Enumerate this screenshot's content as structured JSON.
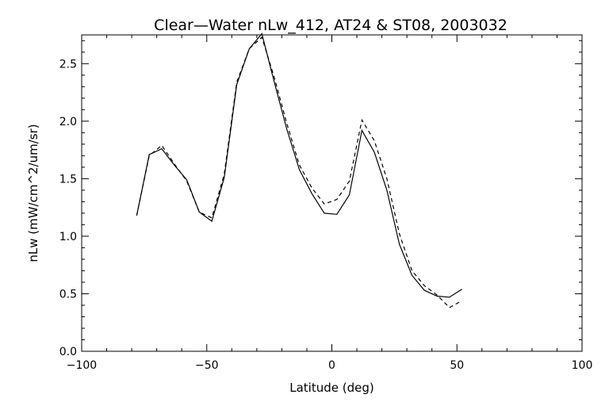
{
  "chart_data": {
    "type": "line",
    "title": "Clear—Water nLw_412, AT24 & ST08, 2003032",
    "xlabel": "Latitude (deg)",
    "ylabel": "nLw (mW/cm^2/um/sr)",
    "xlim": [
      -100,
      100
    ],
    "ylim": [
      0.0,
      2.75
    ],
    "xticks": [
      -100,
      -50,
      0,
      50,
      100
    ],
    "xtick_labels": [
      "−100",
      "−50",
      "0",
      "50",
      "100"
    ],
    "yticks": [
      0.0,
      0.5,
      1.0,
      1.5,
      2.0,
      2.5
    ],
    "ytick_labels": [
      "0.0",
      "0.5",
      "1.0",
      "1.5",
      "2.0",
      "2.5"
    ],
    "grid": false,
    "legend": "none",
    "series": [
      {
        "style": "solid",
        "color": "#000000",
        "x": [
          -78,
          -73,
          -68,
          -63,
          -58,
          -53,
          -48,
          -43,
          -38,
          -33,
          -28,
          -23,
          -18,
          -13,
          -8,
          -3,
          2,
          7,
          12,
          17,
          22,
          27,
          32,
          37,
          42,
          47,
          52
        ],
        "y": [
          1.18,
          1.71,
          1.76,
          1.62,
          1.49,
          1.21,
          1.13,
          1.51,
          2.32,
          2.63,
          2.76,
          2.34,
          1.93,
          1.58,
          1.37,
          1.2,
          1.19,
          1.36,
          1.92,
          1.73,
          1.4,
          0.93,
          0.66,
          0.53,
          0.48,
          0.47,
          0.54
        ]
      },
      {
        "style": "dashed",
        "color": "#000000",
        "x": [
          -78,
          -73,
          -68,
          -63,
          -58,
          -53,
          -48,
          -43,
          -38,
          -33,
          -28,
          -23,
          -18,
          -13,
          -8,
          -3,
          2,
          7,
          12,
          17,
          22,
          27,
          32,
          37,
          42,
          47,
          52
        ],
        "y": [
          1.18,
          1.7,
          1.79,
          1.63,
          1.48,
          1.21,
          1.16,
          1.54,
          2.34,
          2.63,
          2.73,
          2.38,
          1.98,
          1.62,
          1.42,
          1.28,
          1.32,
          1.48,
          2.01,
          1.83,
          1.5,
          1.02,
          0.7,
          0.57,
          0.49,
          0.38,
          0.44
        ]
      }
    ]
  }
}
